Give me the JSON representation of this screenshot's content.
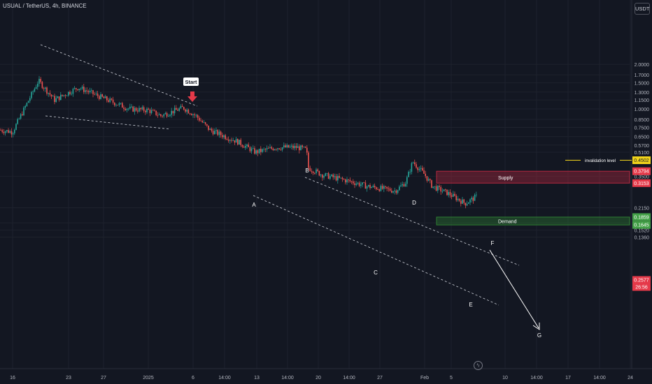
{
  "header": {
    "symbol": "USUAL / TetherUS, 4h, BINANCE",
    "currency": "USDT"
  },
  "footer": {
    "status_icon": "lightning-icon"
  },
  "chart_data": {
    "type": "candlestick",
    "y_scale": "log",
    "ylim": [
      0.125,
      2.2
    ],
    "y_ticks": [
      "2.0000",
      "1.7000",
      "1.5000",
      "1.3000",
      "1.1500",
      "1.0000",
      "0.8500",
      "0.7500",
      "0.6500",
      "0.5700",
      "0.5100",
      "0.4502",
      "0.3794",
      "0.3500",
      "0.3153",
      "0.2577",
      "0.2150",
      "0.1859",
      "0.1700",
      "0.1645",
      "0.1520",
      "0.1360"
    ],
    "x_ticks": [
      "16",
      "23",
      "27",
      "2025",
      "6",
      "14:00",
      "13",
      "14:00",
      "20",
      "14:00",
      "27",
      "Feb",
      "5",
      "10",
      "14:00",
      "17",
      "14:00",
      "24"
    ],
    "price_path": [
      [
        "16",
        0.7
      ],
      [
        "19",
        1.55
      ],
      [
        "21",
        1.15
      ],
      [
        "24",
        1.4
      ],
      [
        "27",
        1.18
      ],
      [
        "29",
        1.0
      ],
      [
        "2025",
        0.98
      ],
      [
        "3",
        0.9
      ],
      [
        "5",
        1.02
      ],
      [
        "7",
        0.9
      ],
      [
        "9",
        0.72
      ],
      [
        "12",
        0.6
      ],
      [
        "13",
        0.51
      ],
      [
        "16",
        0.55
      ],
      [
        "18",
        0.53
      ],
      [
        "19",
        0.4
      ],
      [
        "20",
        0.36
      ],
      [
        "24",
        0.32
      ],
      [
        "26",
        0.3
      ],
      [
        "28",
        0.28
      ],
      [
        "30",
        0.32
      ],
      [
        "31",
        0.44
      ],
      [
        "Feb",
        0.36
      ],
      [
        "3",
        0.3
      ],
      [
        "4",
        0.27
      ],
      [
        "5",
        0.23
      ],
      [
        "6",
        0.2577
      ]
    ],
    "pattern_labels": [
      "Start",
      "A",
      "B",
      "C",
      "D",
      "E",
      "F",
      "G"
    ],
    "zones": [
      {
        "label": "Supply",
        "from": 0.3153,
        "to": 0.3794,
        "color": "#b2283f"
      },
      {
        "label": "Demand",
        "from": 0.1645,
        "to": 0.1859,
        "color": "#2e7d32"
      }
    ],
    "invalidation": {
      "label": "invalidation level",
      "value": "0.4502"
    },
    "price_labels": [
      {
        "text": "0.4502",
        "bg": "#f2d41b",
        "fg": "#131722"
      },
      {
        "text": "0.3794",
        "bg": "#e53949",
        "fg": "#ffffff"
      },
      {
        "text": "0.3153",
        "bg": "#e53949",
        "fg": "#ffffff"
      },
      {
        "text": "0.2577",
        "bg": "#e53949",
        "fg": "#ffffff"
      },
      {
        "text": "26:56",
        "bg": "#e53949",
        "fg": "#ffffff"
      },
      {
        "text": "0.1859",
        "bg": "#43a047",
        "fg": "#ffffff"
      },
      {
        "text": "0.1645",
        "bg": "#43a047",
        "fg": "#ffffff"
      }
    ],
    "colors": {
      "up": "#26a69a",
      "down": "#ef5350",
      "background": "#131722",
      "grid": "#1e222d",
      "accent_arrow": "#e53949"
    }
  }
}
